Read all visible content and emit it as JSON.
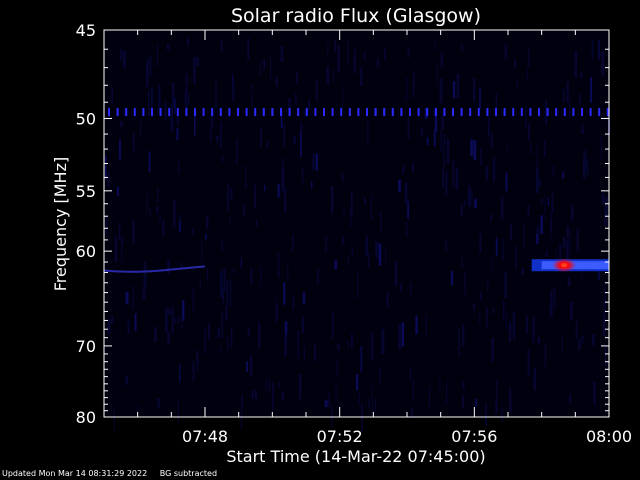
{
  "chart_data": {
    "type": "heatmap",
    "title": "Solar radio Flux (Glasgow)",
    "xlabel": "Start Time (14-Mar-22 07:45:00)",
    "ylabel": "Frequency [MHz]",
    "x_ticks": [
      "07:48",
      "07:52",
      "07:56",
      "08:00"
    ],
    "y_ticks": [
      "45",
      "50",
      "55",
      "60",
      "70",
      "80"
    ],
    "xlim": [
      "07:45",
      "08:00"
    ],
    "ylim": [
      45,
      80
    ],
    "y_scale": "reciprocal",
    "grid": false,
    "colormap": [
      "#000010",
      "#00007a",
      "#3050ff",
      "#ff0000",
      "#ff6040"
    ],
    "features": [
      {
        "name": "interference line",
        "freq": 49.6,
        "time_start": "07:45",
        "time_end": "08:00",
        "intensity": "medium"
      },
      {
        "name": "weak band",
        "freq": 61.8,
        "time_start": "07:45",
        "time_end": "07:48",
        "intensity": "low"
      },
      {
        "name": "burst",
        "freq": 61.3,
        "time_start": "07:58",
        "time_end": "08:00",
        "intensity": "high",
        "peak_time": "07:58:40"
      }
    ]
  },
  "footer": {
    "updated": "Updated Mon Mar 14 08:31:29 2022",
    "note": "BG subtracted"
  }
}
